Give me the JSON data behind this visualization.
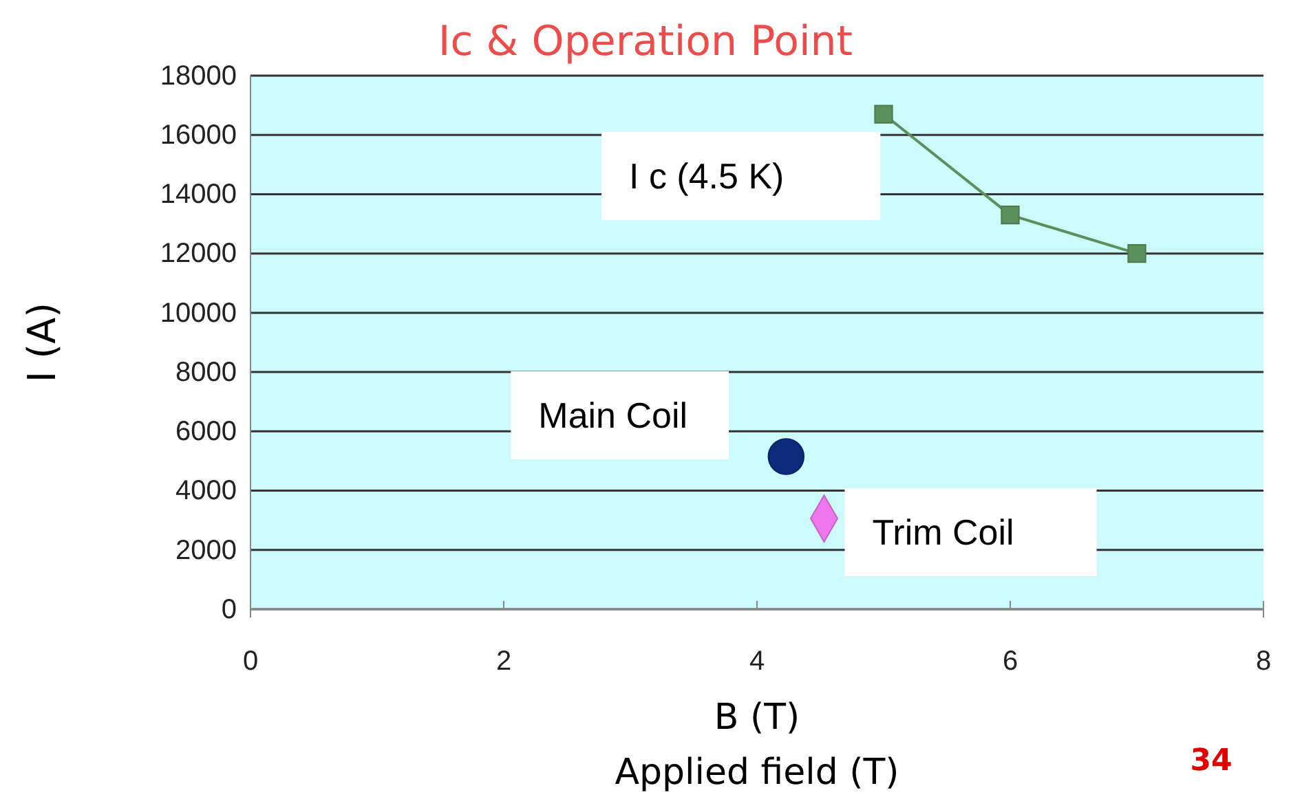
{
  "chart_data": {
    "type": "scatter",
    "title": "Ic & Operation Point",
    "xlabel": "B (T)",
    "ylabel": "I (A)",
    "xlim": [
      0,
      8
    ],
    "xticks": [
      0,
      2,
      4,
      6,
      8
    ],
    "ylim": [
      0,
      18000
    ],
    "yticks": [
      0,
      2000,
      4000,
      6000,
      8000,
      10000,
      12000,
      14000,
      16000,
      18000
    ],
    "grid": "y",
    "legend": false,
    "series": [
      {
        "name": "I c (4.5 K)",
        "type": "line",
        "marker": "square",
        "color": "#5b8f5b",
        "x": [
          5,
          6,
          7
        ],
        "values": [
          16700,
          13300,
          12000
        ]
      },
      {
        "name": "Main Coil",
        "marker": "circle",
        "color": "#0d2a7a",
        "x": [
          4.23
        ],
        "values": [
          5150
        ]
      },
      {
        "name": "Trim Coil",
        "marker": "diamond",
        "color": "#ee77ee",
        "x": [
          4.53
        ],
        "values": [
          3060
        ]
      }
    ],
    "annotations": [
      "Applied field (T)",
      "34"
    ]
  }
}
